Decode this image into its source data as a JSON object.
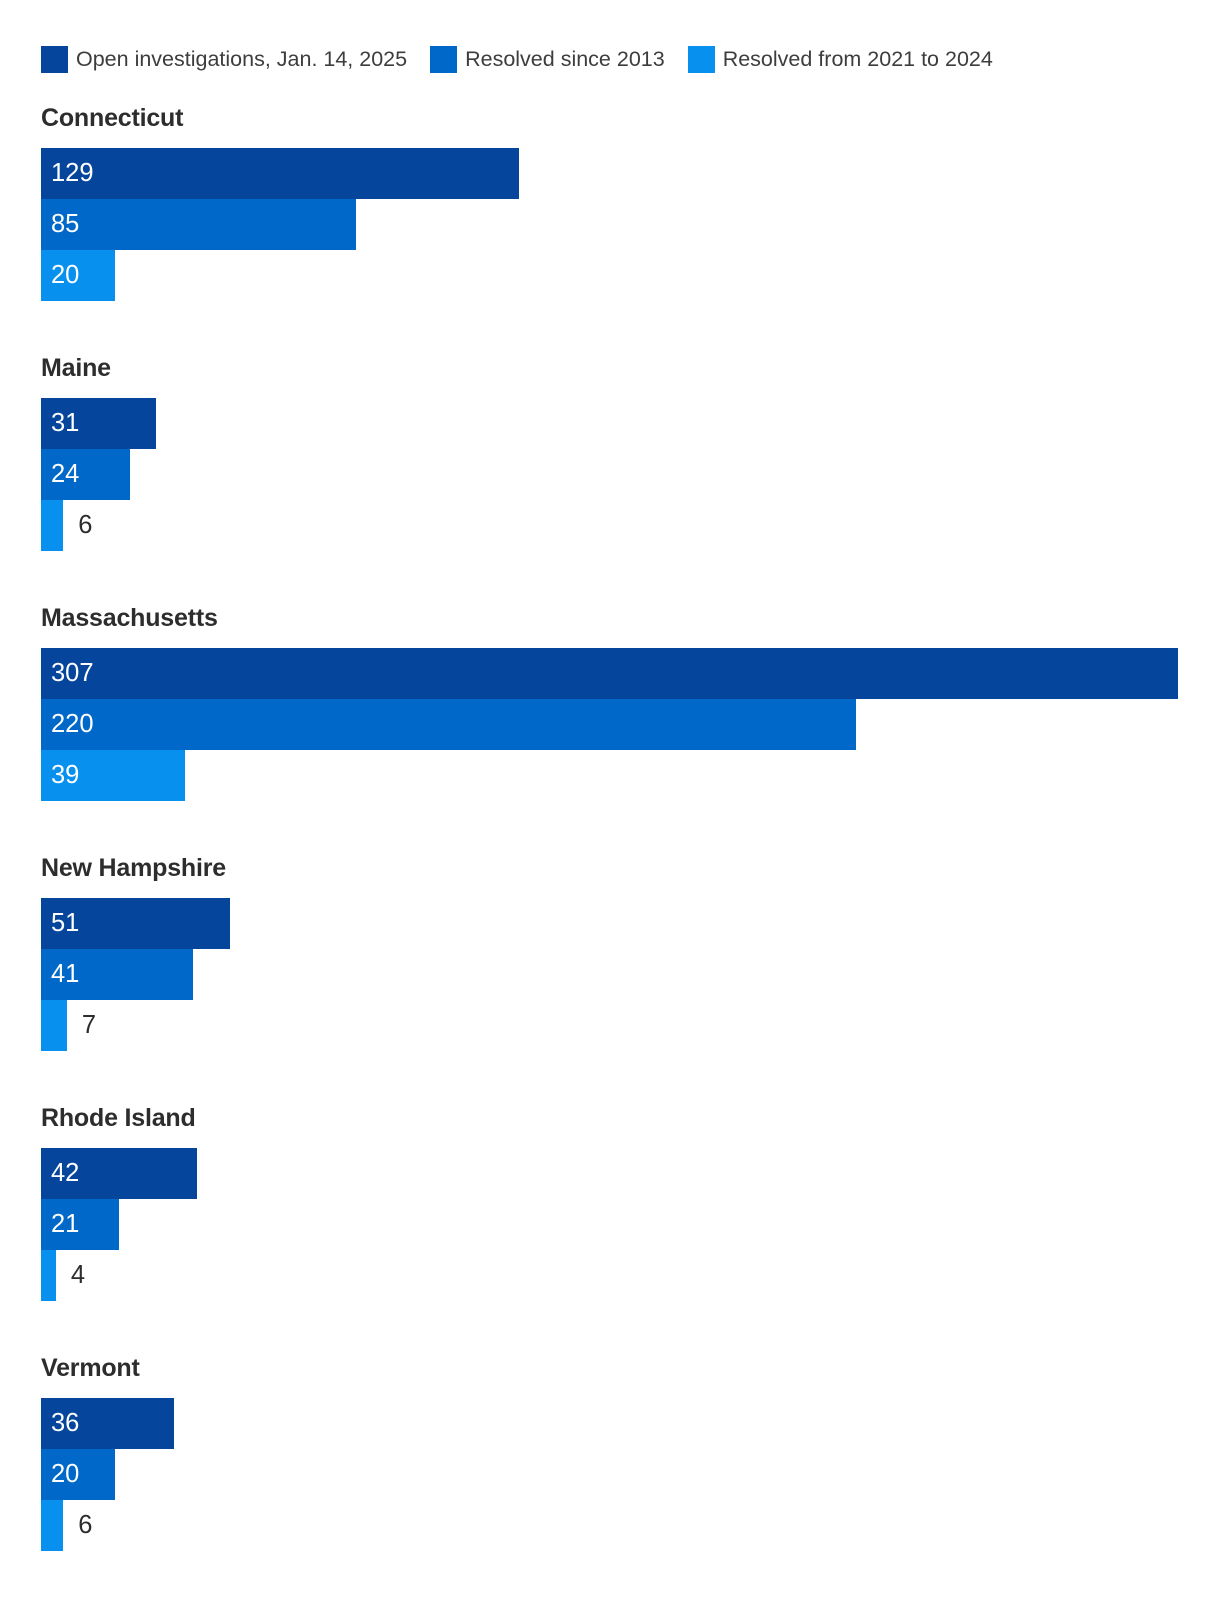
{
  "legend": {
    "items": [
      {
        "label": "Open investigations, Jan. 14, 2025",
        "color": "#05469c"
      },
      {
        "label": "Resolved since 2013",
        "color": "#0068c8"
      },
      {
        "label": "Resolved from 2021 to 2024",
        "color": "#0890ee"
      }
    ]
  },
  "chart_data": {
    "type": "bar",
    "orientation": "horizontal",
    "title": "",
    "xlabel": "",
    "ylabel": "",
    "xlim": [
      0,
      307
    ],
    "grid": false,
    "legend_position": "top",
    "categories": [
      "Connecticut",
      "Maine",
      "Massachusetts",
      "New Hampshire",
      "Rhode Island",
      "Vermont"
    ],
    "series": [
      {
        "name": "Open investigations, Jan. 14, 2025",
        "color": "#05469c",
        "values": [
          129,
          31,
          307,
          51,
          42,
          36
        ]
      },
      {
        "name": "Resolved since 2013",
        "color": "#0068c8",
        "values": [
          85,
          24,
          220,
          41,
          21,
          20
        ]
      },
      {
        "name": "Resolved from 2021 to 2024",
        "color": "#0890ee",
        "values": [
          20,
          6,
          39,
          7,
          4,
          6
        ]
      }
    ]
  }
}
